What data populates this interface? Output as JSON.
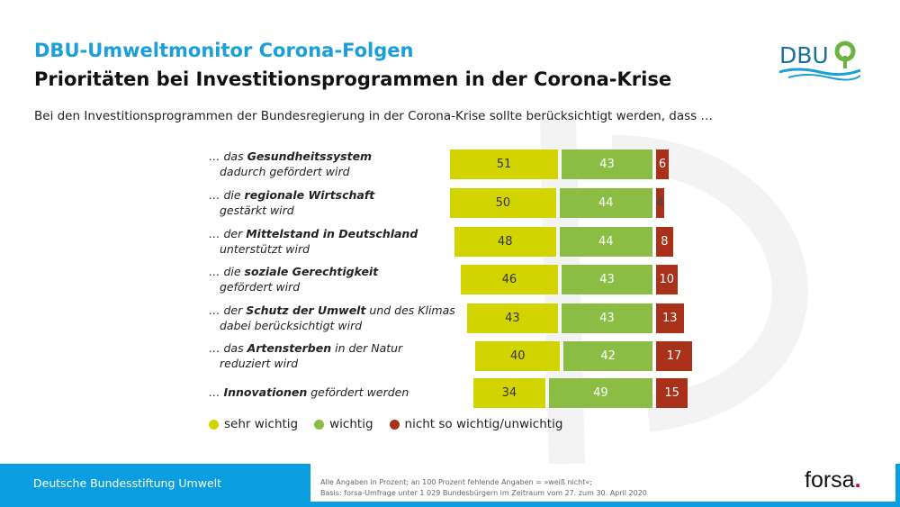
{
  "header": {
    "title": "DBU-Umweltmonitor Corona-Folgen",
    "subtitle": "Prioritäten bei Investitionsprogrammen in der Corona-Krise",
    "question": "Bei den Investitionsprogrammen der Bundesregierung in der Corona-Krise sollte berücksichtigt werden, dass …",
    "logo": "DBU"
  },
  "chart_data": {
    "type": "bar",
    "stacked": true,
    "orientation": "horizontal",
    "categories": [
      {
        "line1_pre": "… das ",
        "line1_bold": "Gesundheitssystem",
        "line1_post": "",
        "line2": "dadurch gefördert wird"
      },
      {
        "line1_pre": "… die ",
        "line1_bold": "regionale Wirtschaft",
        "line1_post": "",
        "line2": "gestärkt wird"
      },
      {
        "line1_pre": "… der ",
        "line1_bold": "Mittelstand in Deutschland",
        "line1_post": "",
        "line2": "unterstützt wird"
      },
      {
        "line1_pre": "… die ",
        "line1_bold": "soziale Gerechtigkeit",
        "line1_post": "",
        "line2": "gefördert wird"
      },
      {
        "line1_pre": "… der ",
        "line1_bold": "Schutz der Umwelt",
        "line1_post": " und des Klimas",
        "line2": "dabei berücksichtigt wird"
      },
      {
        "line1_pre": "… das ",
        "line1_bold": "Artensterben",
        "line1_post": " in der Natur",
        "line2": "reduziert wird"
      },
      {
        "line1_pre": "… ",
        "line1_bold": "Innovationen",
        "line1_post": " gefördert werden",
        "line2": ""
      }
    ],
    "series": [
      {
        "name": "sehr wichtig",
        "color": "#d2d400",
        "text_color": "#333",
        "values": [
          51,
          50,
          48,
          46,
          43,
          40,
          34
        ]
      },
      {
        "name": "wichtig",
        "color": "#8bbd45",
        "text_color": "#fff",
        "values": [
          43,
          44,
          44,
          43,
          43,
          42,
          49
        ]
      },
      {
        "name": "nicht so wichtig/unwichtig",
        "color": "#a93019",
        "text_color": "#fff",
        "values": [
          6,
          4,
          8,
          10,
          13,
          17,
          15
        ]
      }
    ],
    "unit": "%",
    "legend": "bottom-left"
  },
  "footer": {
    "org": "Deutsche Bundesstiftung Umwelt",
    "note1": "Alle Angaben in Prozent; an 100 Prozent fehlende Angaben = »weiß nicht«;",
    "note2": "Basis: forsa-Umfrage unter 1 029 Bundesbürgern im Zeitraum vom 27. zum 30. April 2020",
    "forsa": "forsa",
    "forsa_dot": "."
  }
}
